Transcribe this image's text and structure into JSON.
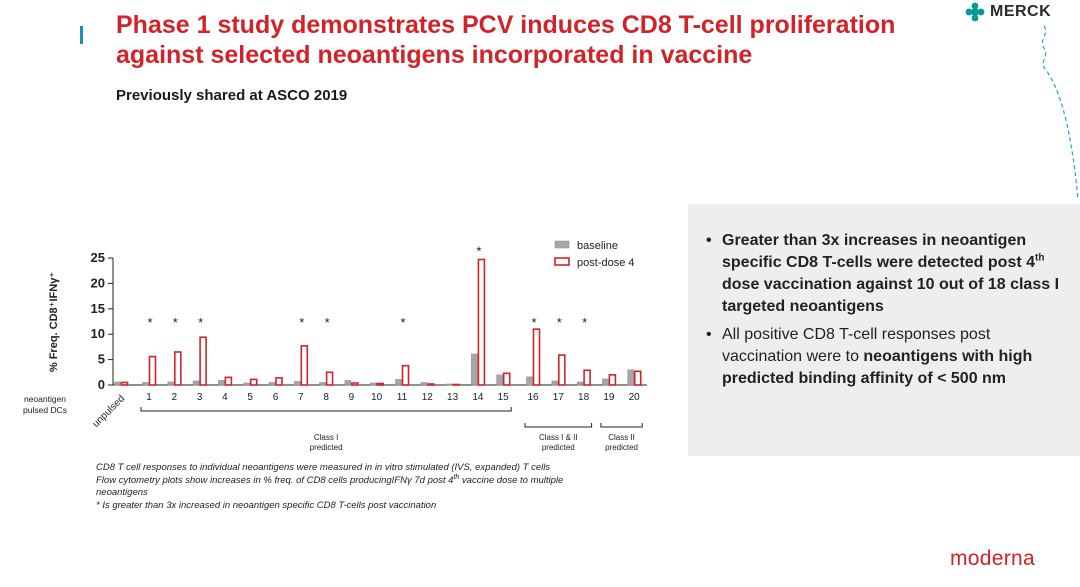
{
  "slide": {
    "title": "Phase 1 study demonstrates PCV induces CD8 T-cell proliferation against selected neoantigens incorporated in vaccine",
    "subtitle": "Previously shared at ASCO 2019"
  },
  "branding": {
    "merck_label": "MERCK",
    "moderna_label": "moderna",
    "merck_color": "#009a9a",
    "moderna_color": "#d2232a"
  },
  "info_box": {
    "bullet1_text": "Greater than 3x increases in neoantigen specific CD8 T-cells were detected post 4",
    "bullet1_sup": "th",
    "bullet1_text2": " dose vaccination against 10 out of 18 class I targeted neoantigens",
    "bullet2_text": "All positive CD8 T-cell responses post vaccination were to ",
    "bullet2_bold": "neoantigens with high predicted binding affinity of < 500 nm"
  },
  "footnotes": {
    "line1": "CD8 T cell responses to individual neoantigens were measured in in vitro stimulated (IVS, expanded) T cells",
    "line2a": "Flow cytometry plots show increases in % freq. of CD8 cells producingIFNγ 7d post 4",
    "line2sup": "th",
    "line2b": " vaccine dose to multiple neoantigens",
    "line3": "* Is greater than 3x increased in neoantigen specific CD8 T-cells post vaccination"
  },
  "chart_data": {
    "type": "bar",
    "title": "",
    "ylabel": "% Freq. CD8+IFNγ+",
    "xlabel": "neoantigen pulsed DCs",
    "ylim": [
      0,
      25
    ],
    "yticks": [
      0,
      5,
      10,
      15,
      20,
      25
    ],
    "categories": [
      "unpulsed",
      "1",
      "2",
      "3",
      "4",
      "5",
      "6",
      "7",
      "8",
      "9",
      "10",
      "11",
      "12",
      "13",
      "14",
      "15",
      "16",
      "17",
      "18",
      "19",
      "20"
    ],
    "series": [
      {
        "name": "baseline",
        "color": "#999999",
        "values": [
          0.6,
          0.5,
          0.6,
          0.8,
          0.9,
          0.4,
          0.5,
          0.7,
          0.5,
          0.9,
          0.4,
          1.1,
          0.5,
          0.2,
          6.1,
          2.0,
          1.6,
          0.8,
          0.6,
          1.2,
          3.0
        ]
      },
      {
        "name": "post-dose 4",
        "color": "#d2232a",
        "values": [
          0.5,
          5.6,
          6.5,
          9.4,
          1.5,
          1.1,
          1.4,
          7.7,
          2.5,
          0.4,
          0.3,
          3.8,
          0.2,
          0.1,
          24.7,
          2.3,
          11.0,
          5.9,
          2.9,
          2.0,
          2.7
        ]
      }
    ],
    "significant": [
      "1",
      "2",
      "3",
      "7",
      "8",
      "11",
      "14",
      "16",
      "17",
      "18"
    ],
    "significance_marker": "*",
    "groups": [
      {
        "label": "Class I predicted",
        "from": "1",
        "to": "15"
      },
      {
        "label": "Class I & II predicted",
        "from": "16",
        "to": "18"
      },
      {
        "label": "Class II predicted",
        "from": "19",
        "to": "20"
      }
    ],
    "legend_position": "top-right",
    "grid": false
  }
}
